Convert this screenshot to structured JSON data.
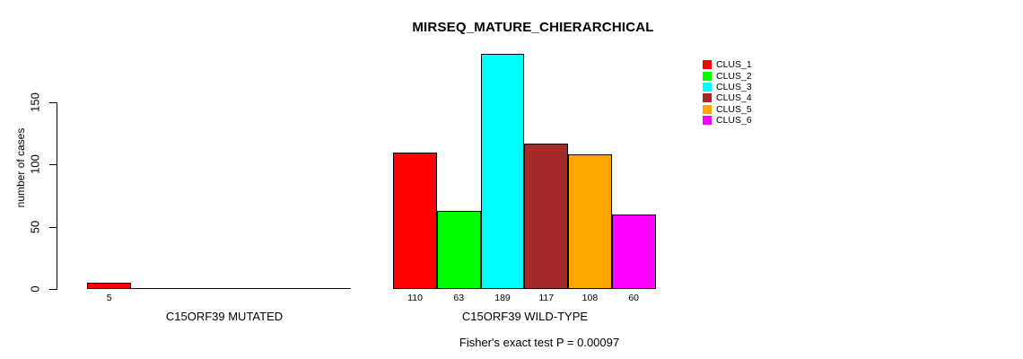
{
  "window": {
    "background": "#FFFFFF",
    "foreground": "#000000"
  },
  "chart_data": {
    "type": "bar",
    "title": "MIRSEQ_MATURE_CHIERARCHICAL",
    "subtitle": "Fisher's exact test P = 0.00097",
    "ylabel": "number of cases",
    "xlabel": "",
    "ylim": [
      0,
      189
    ],
    "yticks": [
      0,
      50,
      100,
      150
    ],
    "grid": false,
    "legend_position": "top-right",
    "bar_value_labels_shown": true,
    "categories": [
      "C15ORF39 MUTATED",
      "C15ORF39 WILD-TYPE"
    ],
    "series": [
      {
        "name": "CLUS_1",
        "color": "#FF0000",
        "values": [
          5,
          110
        ]
      },
      {
        "name": "CLUS_2",
        "color": "#00FF00",
        "values": [
          0,
          63
        ]
      },
      {
        "name": "CLUS_3",
        "color": "#00FFFF",
        "values": [
          0,
          189
        ]
      },
      {
        "name": "CLUS_4",
        "color": "#A52A2A",
        "values": [
          0,
          117
        ]
      },
      {
        "name": "CLUS_5",
        "color": "#FFA500",
        "values": [
          0,
          108
        ]
      },
      {
        "name": "CLUS_6",
        "color": "#FF00FF",
        "values": [
          0,
          60
        ]
      }
    ]
  }
}
